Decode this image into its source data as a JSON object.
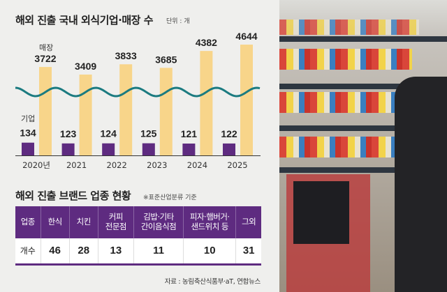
{
  "chart_title": "해외 진출 국내 외식기업·매장 수",
  "unit": "단위 : 개",
  "chart_data": {
    "type": "bar",
    "title": "해외 진출 국내 외식기업·매장 수",
    "categories": [
      "2020년",
      "2021",
      "2022",
      "2023",
      "2024",
      "2025"
    ],
    "series": [
      {
        "name": "기업",
        "color": "#5e2b80",
        "values": [
          134,
          123,
          124,
          125,
          121,
          122
        ]
      },
      {
        "name": "매장",
        "color": "#f8d58a",
        "values": [
          3722,
          3409,
          3833,
          3685,
          4382,
          4644
        ]
      }
    ],
    "axis_break": true,
    "break_color": "#1b7b80"
  },
  "table": {
    "title": "해외 진출 브랜드 업종 현황",
    "note": "※표준산업분류 기준",
    "headers": [
      "업종",
      "한식",
      "치킨",
      "커피\n전문점",
      "김밥·기타\n간이음식점",
      "피자·햄버거·\n샌드위치 등",
      "그외"
    ],
    "row": [
      "개수",
      "46",
      "28",
      "13",
      "11",
      "10",
      "31"
    ]
  },
  "source": "자료 : 농림축산식품부·aT, 연합뉴스"
}
